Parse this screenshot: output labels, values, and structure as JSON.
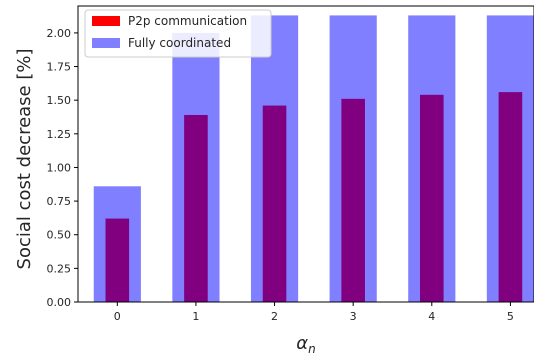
{
  "chart_data": {
    "type": "bar",
    "x": [
      0,
      1,
      2,
      3,
      4,
      5
    ],
    "x_tick_labels": [
      "0",
      "1",
      "2",
      "3",
      "4",
      "5"
    ],
    "xlabel_base": "α",
    "xlabel_sub": "n",
    "ylabel": "Social cost decrease [%]",
    "ylim": [
      0,
      2.2
    ],
    "y_ticks": [
      0.0,
      0.25,
      0.5,
      0.75,
      1.0,
      1.25,
      1.5,
      1.75,
      2.0
    ],
    "y_tick_labels": [
      "0.00",
      "0.25",
      "0.50",
      "0.75",
      "1.00",
      "1.25",
      "1.50",
      "1.75",
      "2.00"
    ],
    "legend_position": "top-left",
    "grid": false,
    "series": [
      {
        "name": "P2p communication",
        "color": "#ff0000",
        "values": [
          0.62,
          1.39,
          1.46,
          1.51,
          1.54,
          1.56
        ]
      },
      {
        "name": "Fully coordinated",
        "color": "#7f7fff",
        "values": [
          0.86,
          2.0,
          2.13,
          2.13,
          2.13,
          2.13
        ]
      }
    ],
    "overlap_color": "#800080"
  }
}
